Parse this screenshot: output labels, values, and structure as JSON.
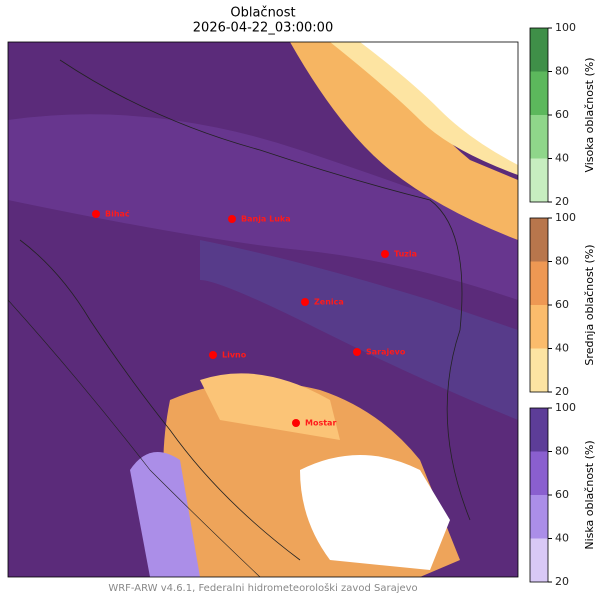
{
  "header": {
    "title": "Oblačnost",
    "subtitle": "2026-04-22_03:00:00"
  },
  "cities": [
    {
      "label": "Bihać"
    },
    {
      "label": "Banja Luka"
    },
    {
      "label": "Tuzla"
    },
    {
      "label": "Zenica"
    },
    {
      "label": "Livno"
    },
    {
      "label": "Sarajevo"
    },
    {
      "label": "Mostar"
    }
  ],
  "colorbars": [
    {
      "label": "Visoka oblačnost (%)",
      "range": [
        20,
        100
      ],
      "ticks": [
        20,
        40,
        60,
        80,
        100
      ],
      "colors": [
        "#c7eec0",
        "#8fd68a",
        "#5cb85c",
        "#3f8f48"
      ]
    },
    {
      "label": "Srednja oblačnost (%)",
      "range": [
        20,
        100
      ],
      "ticks": [
        20,
        40,
        60,
        80,
        100
      ],
      "colors": [
        "#fde4a2",
        "#fbbc6c",
        "#ee9853",
        "#b8764c"
      ]
    },
    {
      "label": "Niska oblačnost (%)",
      "range": [
        20,
        100
      ],
      "ticks": [
        20,
        40,
        60,
        80,
        100
      ],
      "colors": [
        "#d9c9f6",
        "#ab8ee8",
        "#8a5fcf",
        "#5d3d98"
      ]
    }
  ],
  "footer": "WRF-ARW v4.6.1, Federalni hidrometeorološki zavod Sarajevo"
}
